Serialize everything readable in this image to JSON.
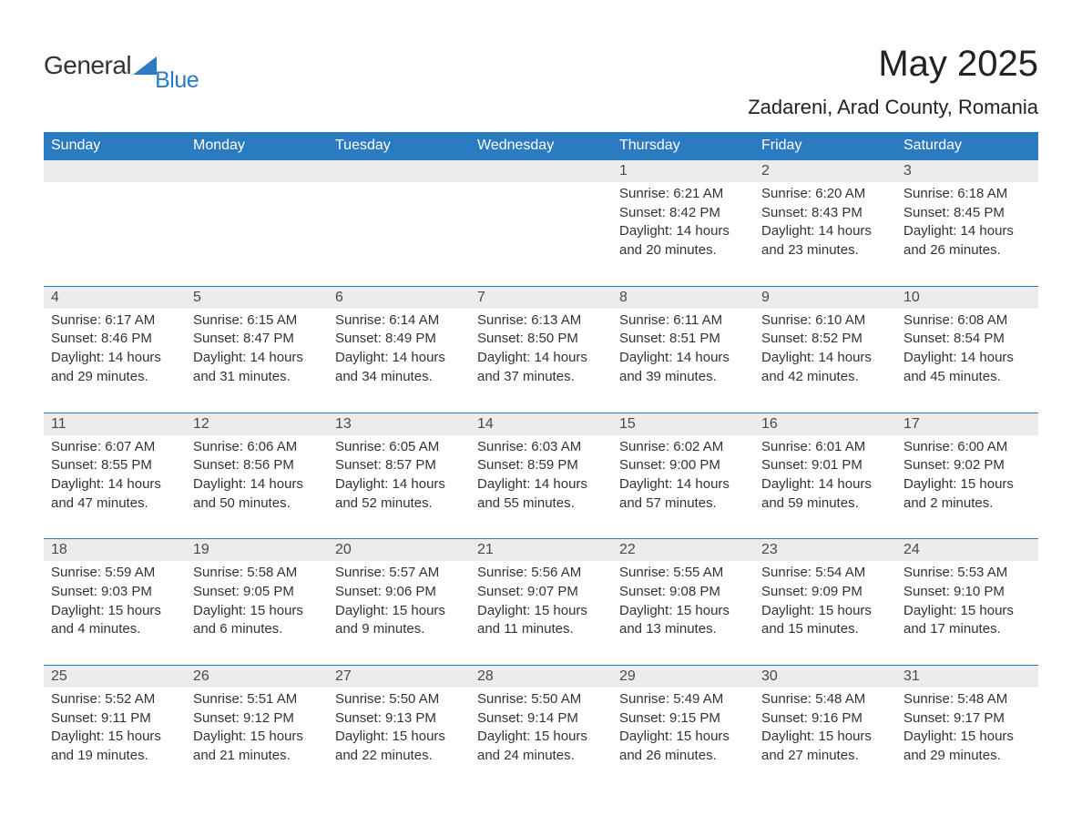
{
  "brand": {
    "text1": "General",
    "text2": "Blue",
    "triangle_color": "#2a7bbf"
  },
  "title": "May 2025",
  "location": "Zadareni, Arad County, Romania",
  "day_names": [
    "Sunday",
    "Monday",
    "Tuesday",
    "Wednesday",
    "Thursday",
    "Friday",
    "Saturday"
  ],
  "colors": {
    "header_bg": "#2a7bbf",
    "header_text": "#ffffff",
    "daynum_bg": "#ececec",
    "daynum_text": "#4a4a4a",
    "body_text": "#333333",
    "week_border": "#2a7bbf",
    "background": "#ffffff"
  },
  "fonts": {
    "title_size_pt": 30,
    "subtitle_size_pt": 16,
    "dayname_size_pt": 12,
    "body_size_pt": 11,
    "family": "Arial"
  },
  "labels": {
    "sunrise": "Sunrise:",
    "sunset": "Sunset:",
    "daylight": "Daylight:"
  },
  "weeks": [
    [
      {
        "blank": true
      },
      {
        "blank": true
      },
      {
        "blank": true
      },
      {
        "blank": true
      },
      {
        "n": "1",
        "sunrise": "6:21 AM",
        "sunset": "8:42 PM",
        "dl": "14 hours and 20 minutes."
      },
      {
        "n": "2",
        "sunrise": "6:20 AM",
        "sunset": "8:43 PM",
        "dl": "14 hours and 23 minutes."
      },
      {
        "n": "3",
        "sunrise": "6:18 AM",
        "sunset": "8:45 PM",
        "dl": "14 hours and 26 minutes."
      }
    ],
    [
      {
        "n": "4",
        "sunrise": "6:17 AM",
        "sunset": "8:46 PM",
        "dl": "14 hours and 29 minutes."
      },
      {
        "n": "5",
        "sunrise": "6:15 AM",
        "sunset": "8:47 PM",
        "dl": "14 hours and 31 minutes."
      },
      {
        "n": "6",
        "sunrise": "6:14 AM",
        "sunset": "8:49 PM",
        "dl": "14 hours and 34 minutes."
      },
      {
        "n": "7",
        "sunrise": "6:13 AM",
        "sunset": "8:50 PM",
        "dl": "14 hours and 37 minutes."
      },
      {
        "n": "8",
        "sunrise": "6:11 AM",
        "sunset": "8:51 PM",
        "dl": "14 hours and 39 minutes."
      },
      {
        "n": "9",
        "sunrise": "6:10 AM",
        "sunset": "8:52 PM",
        "dl": "14 hours and 42 minutes."
      },
      {
        "n": "10",
        "sunrise": "6:08 AM",
        "sunset": "8:54 PM",
        "dl": "14 hours and 45 minutes."
      }
    ],
    [
      {
        "n": "11",
        "sunrise": "6:07 AM",
        "sunset": "8:55 PM",
        "dl": "14 hours and 47 minutes."
      },
      {
        "n": "12",
        "sunrise": "6:06 AM",
        "sunset": "8:56 PM",
        "dl": "14 hours and 50 minutes."
      },
      {
        "n": "13",
        "sunrise": "6:05 AM",
        "sunset": "8:57 PM",
        "dl": "14 hours and 52 minutes."
      },
      {
        "n": "14",
        "sunrise": "6:03 AM",
        "sunset": "8:59 PM",
        "dl": "14 hours and 55 minutes."
      },
      {
        "n": "15",
        "sunrise": "6:02 AM",
        "sunset": "9:00 PM",
        "dl": "14 hours and 57 minutes."
      },
      {
        "n": "16",
        "sunrise": "6:01 AM",
        "sunset": "9:01 PM",
        "dl": "14 hours and 59 minutes."
      },
      {
        "n": "17",
        "sunrise": "6:00 AM",
        "sunset": "9:02 PM",
        "dl": "15 hours and 2 minutes."
      }
    ],
    [
      {
        "n": "18",
        "sunrise": "5:59 AM",
        "sunset": "9:03 PM",
        "dl": "15 hours and 4 minutes."
      },
      {
        "n": "19",
        "sunrise": "5:58 AM",
        "sunset": "9:05 PM",
        "dl": "15 hours and 6 minutes."
      },
      {
        "n": "20",
        "sunrise": "5:57 AM",
        "sunset": "9:06 PM",
        "dl": "15 hours and 9 minutes."
      },
      {
        "n": "21",
        "sunrise": "5:56 AM",
        "sunset": "9:07 PM",
        "dl": "15 hours and 11 minutes."
      },
      {
        "n": "22",
        "sunrise": "5:55 AM",
        "sunset": "9:08 PM",
        "dl": "15 hours and 13 minutes."
      },
      {
        "n": "23",
        "sunrise": "5:54 AM",
        "sunset": "9:09 PM",
        "dl": "15 hours and 15 minutes."
      },
      {
        "n": "24",
        "sunrise": "5:53 AM",
        "sunset": "9:10 PM",
        "dl": "15 hours and 17 minutes."
      }
    ],
    [
      {
        "n": "25",
        "sunrise": "5:52 AM",
        "sunset": "9:11 PM",
        "dl": "15 hours and 19 minutes."
      },
      {
        "n": "26",
        "sunrise": "5:51 AM",
        "sunset": "9:12 PM",
        "dl": "15 hours and 21 minutes."
      },
      {
        "n": "27",
        "sunrise": "5:50 AM",
        "sunset": "9:13 PM",
        "dl": "15 hours and 22 minutes."
      },
      {
        "n": "28",
        "sunrise": "5:50 AM",
        "sunset": "9:14 PM",
        "dl": "15 hours and 24 minutes."
      },
      {
        "n": "29",
        "sunrise": "5:49 AM",
        "sunset": "9:15 PM",
        "dl": "15 hours and 26 minutes."
      },
      {
        "n": "30",
        "sunrise": "5:48 AM",
        "sunset": "9:16 PM",
        "dl": "15 hours and 27 minutes."
      },
      {
        "n": "31",
        "sunrise": "5:48 AM",
        "sunset": "9:17 PM",
        "dl": "15 hours and 29 minutes."
      }
    ]
  ]
}
